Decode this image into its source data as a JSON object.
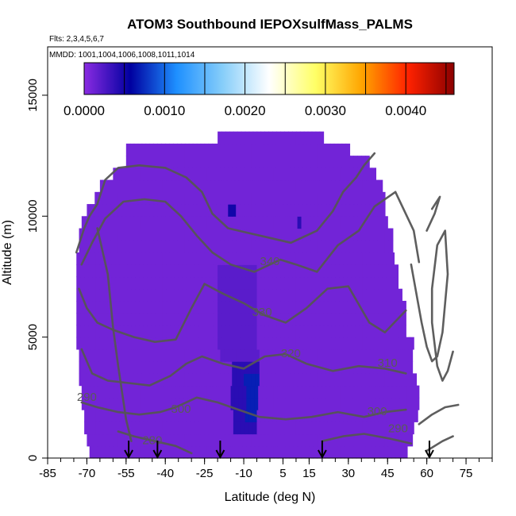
{
  "chart_data": {
    "type": "heatmap",
    "title": "ATOM3 Southbound IEPOXsulfMass_PALMS",
    "flights_note": "Flts: 2,3,4,5,6,7",
    "dates_note": "MMDD: 1001,1004,1006,1008,1011,1014",
    "xlabel": "Latitude (deg N)",
    "ylabel": "Altitude (m)",
    "xlim": [
      -85,
      85
    ],
    "ylim": [
      0,
      17000
    ],
    "x_ticks": [
      -85,
      -70,
      -55,
      -40,
      -25,
      -10,
      5,
      15,
      30,
      45,
      60,
      75
    ],
    "y_ticks": [
      0,
      5000,
      10000,
      15000
    ],
    "colorbar": {
      "min": 0.0,
      "max": 0.0046,
      "tick_values": [
        0.0,
        0.001,
        0.002,
        0.003,
        0.004
      ],
      "tick_labels": [
        "0.0000",
        "0.0010",
        "0.0020",
        "0.0030",
        "0.0040"
      ],
      "colors": [
        "#8a2be2",
        "#0000a0",
        "#1e90ff",
        "#87cefa",
        "#ffffff",
        "#ffff66",
        "#ffa500",
        "#ff2200",
        "#8b0000"
      ]
    },
    "background_value": 0.0001,
    "enhancements": [
      {
        "lat_range": [
          -20,
          -5
        ],
        "alt_range": [
          4000,
          8000
        ],
        "value": 0.0002
      },
      {
        "lat_range": [
          -15,
          -5
        ],
        "alt_range": [
          1000,
          4000
        ],
        "value": 0.0004
      },
      {
        "lat_range": [
          -10,
          -5
        ],
        "alt_range": [
          1500,
          3500
        ],
        "value": 0.0007
      },
      {
        "lat_range": [
          -16,
          -13
        ],
        "alt_range": [
          9800,
          10300
        ],
        "value": 0.0005
      },
      {
        "lat_range": [
          10,
          11
        ],
        "alt_range": [
          9200,
          10000
        ],
        "value": 0.0004
      }
    ],
    "contour_labels": [
      {
        "text": "340",
        "lat": 0,
        "alt": 8100
      },
      {
        "text": "330",
        "lat": -3,
        "alt": 6000
      },
      {
        "text": "320",
        "lat": 8,
        "alt": 4300
      },
      {
        "text": "310",
        "lat": 45,
        "alt": 3900
      },
      {
        "text": "300",
        "lat": -34,
        "alt": 2000
      },
      {
        "text": "300",
        "lat": 41,
        "alt": 1900
      },
      {
        "text": "290",
        "lat": 49,
        "alt": 1200
      },
      {
        "text": "290",
        "lat": -70,
        "alt": 2500
      },
      {
        "text": "280",
        "lat": -45,
        "alt": 700
      }
    ],
    "flight_arrows_lat": [
      -54,
      -43,
      -19,
      20,
      61
    ]
  }
}
